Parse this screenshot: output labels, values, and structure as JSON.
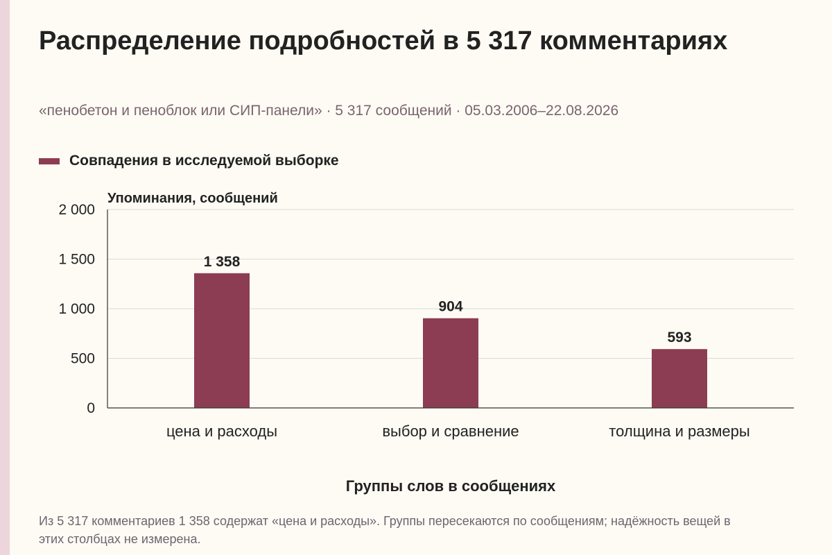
{
  "header": {
    "title": "Распределение подробностей в 5 317 комментариях",
    "subtitle": "«пенобетон и пеноблок или СИП-панели» · 5 317 сообщений · 05.03.2006–22.08.2026"
  },
  "footnote": "Из 5 317 комментариев 1 358 содержат «цена и расходы». Группы пересекаются по сообщениям; надёжность вещей в этих столбцах не измерена.",
  "colors": {
    "bar": "#8c3d53",
    "grid": "#d9d9d9",
    "axis": "#333333"
  },
  "chart_data": {
    "type": "bar",
    "title": "Распределение подробностей в 5 317 комментариях",
    "categories": [
      "цена и расходы",
      "выбор и сравнение",
      "толщина и размеры"
    ],
    "series": [
      {
        "name": "Совпадения в исследуемой выборке",
        "values": [
          1358,
          904,
          593
        ]
      }
    ],
    "data_labels": [
      "1 358",
      "904",
      "593"
    ],
    "ylabel": "Упоминания, сообщений",
    "xlabel": "Группы слов в сообщениях",
    "ylim": [
      0,
      2000
    ],
    "yticks": [
      0,
      500,
      1000,
      1500,
      2000
    ],
    "ytick_labels": [
      "0",
      "500",
      "1 000",
      "1 500",
      "2 000"
    ],
    "grid": true,
    "legend_position": "top-left"
  }
}
